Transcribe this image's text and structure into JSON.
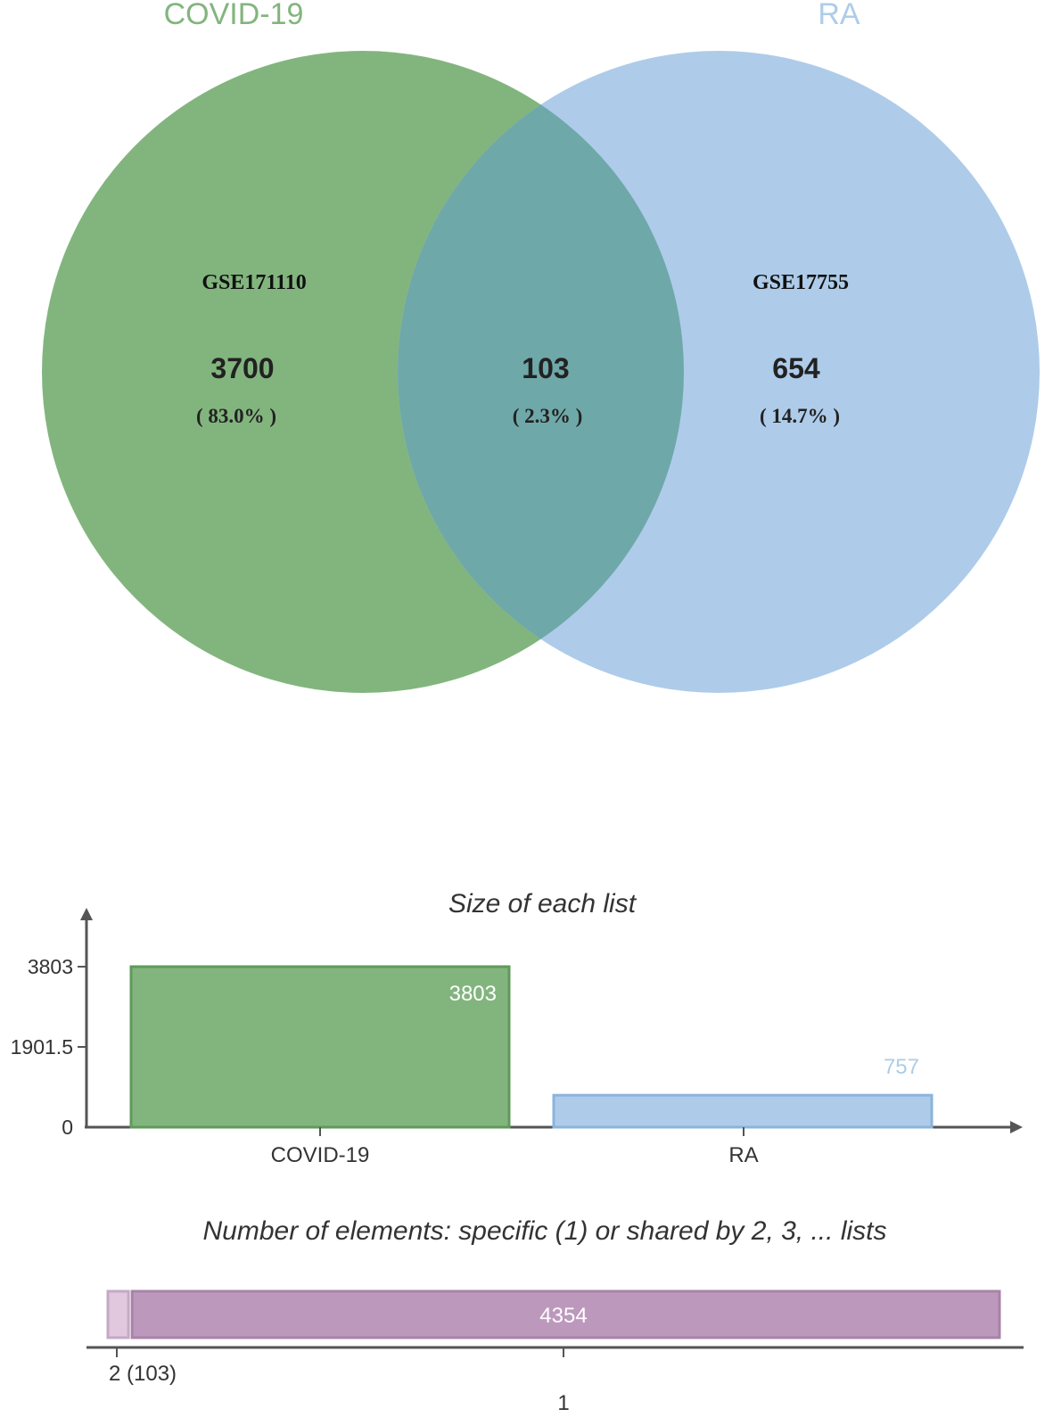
{
  "chart_data": [
    {
      "type": "venn",
      "sets": [
        {
          "label": "COVID-19",
          "dataset": "GSE171110",
          "total": 3803,
          "color": "#82b57e"
        },
        {
          "label": "RA",
          "dataset": "GSE17755",
          "total": 757,
          "color": "#aecce9"
        }
      ],
      "overlap_color": "#6fa8a9",
      "regions": [
        {
          "sets": [
            "COVID-19"
          ],
          "count": "3700",
          "percent": "( 83.0% )"
        },
        {
          "sets": [
            "COVID-19",
            "RA"
          ],
          "count": "103",
          "percent": "( 2.3% )"
        },
        {
          "sets": [
            "RA"
          ],
          "count": "654",
          "percent": "( 14.7% )"
        }
      ]
    },
    {
      "type": "bar",
      "title": "Size of each list",
      "categories": [
        "COVID-19",
        "RA"
      ],
      "values": [
        3803,
        757
      ],
      "value_labels": [
        "3803",
        "757"
      ],
      "colors": [
        "#82b57e",
        "#aecce9"
      ],
      "label_colors": [
        "#ffffff",
        "#aecce9"
      ],
      "y_ticks": [
        "3803",
        "1901.5",
        "0"
      ],
      "ylim": [
        0,
        3803
      ]
    },
    {
      "type": "stacked-bar",
      "title": "Number of elements: specific (1) or shared by 2, 3, ... lists",
      "segments": [
        {
          "label": "2 (103)",
          "value": 103,
          "color": "#e1c8df"
        },
        {
          "label": "1",
          "value": 4354,
          "value_label": "4354",
          "color": "#bd98bd"
        }
      ]
    }
  ]
}
